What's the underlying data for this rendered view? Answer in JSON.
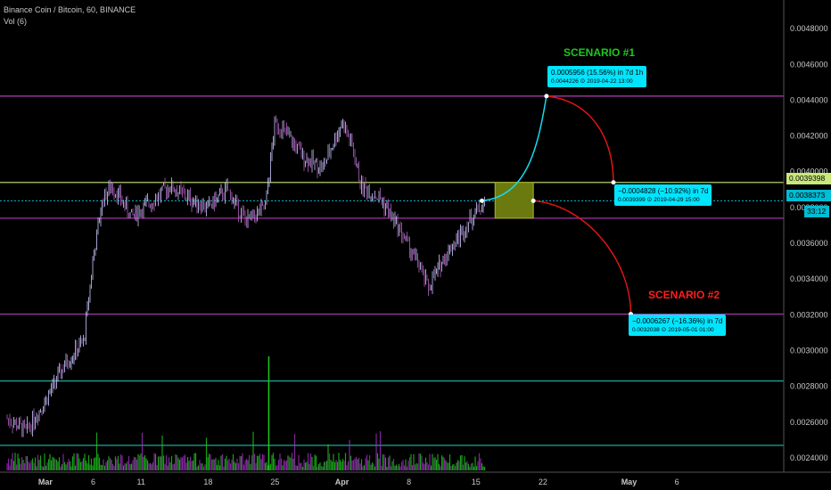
{
  "header": {
    "title": "Binance Coin / Bitcoin, 60, BINANCE",
    "volume_label": "Vol (6)"
  },
  "scenario1": {
    "title": "SCENARIO #1",
    "color": "#1ec81e",
    "tooltip_main": "0.0005956 (15.56%) in 7d 1h",
    "tooltip_price": "0.0044226",
    "tooltip_date": "2019-04-22  13:00"
  },
  "middle_tooltip": {
    "main": "−0.0004828 (−10.92%) in 7d",
    "price": "0.0039399",
    "date": "2019-04-29  15:00"
  },
  "scenario2": {
    "title": "SCENARIO #2",
    "color": "#ff1e1e",
    "tooltip_main": "−0.0006267 (−16.36%) in 7d",
    "tooltip_price": "0.0032038",
    "date": "2019-05-01  01:00"
  },
  "price_tags": {
    "upper": "0.0039398",
    "current": "0.0038373",
    "countdown": "33:12"
  },
  "chart_data": {
    "type": "line",
    "title": "Binance Coin / Bitcoin, 60, BINANCE",
    "y_ticks": [
      "0.0024000",
      "0.0026000",
      "0.0028000",
      "0.0030000",
      "0.0032000",
      "0.0034000",
      "0.0036000",
      "0.0038000",
      "0.0040000",
      "0.0042000",
      "0.0044000",
      "0.0046000",
      "0.0048000"
    ],
    "x_ticks": [
      "Mar",
      "6",
      "11",
      "18",
      "25",
      "Apr",
      "8",
      "15",
      "22",
      "May",
      "6"
    ],
    "y_range": [
      0.00232,
      0.00496
    ],
    "price_series": {
      "x": [
        "02-25",
        "02-27",
        "03-01",
        "03-03",
        "03-05",
        "03-06",
        "03-07",
        "03-08",
        "03-10",
        "03-12",
        "03-14",
        "03-16",
        "03-18",
        "03-20",
        "03-22",
        "03-24",
        "03-25",
        "03-26",
        "03-28",
        "03-30",
        "04-01",
        "04-02",
        "04-03",
        "04-05",
        "04-07",
        "04-09",
        "04-10",
        "04-11",
        "04-12",
        "04-13",
        "04-15",
        "04-16"
      ],
      "values": [
        0.00262,
        0.00255,
        0.00272,
        0.00292,
        0.00305,
        0.00352,
        0.00385,
        0.00392,
        0.00375,
        0.00383,
        0.00392,
        0.00385,
        0.0038,
        0.0039,
        0.00372,
        0.0038,
        0.00428,
        0.00422,
        0.00408,
        0.00402,
        0.00428,
        0.00415,
        0.00392,
        0.00385,
        0.00368,
        0.00348,
        0.00335,
        0.00345,
        0.00355,
        0.00362,
        0.00378,
        0.00383
      ]
    },
    "horizontal_levels": [
      {
        "value": 0.0044226,
        "color": "#b23bb2"
      },
      {
        "value": 0.0039398,
        "color": "#c8e87a"
      },
      {
        "value": 0.00374,
        "color": "#b23bb2"
      },
      {
        "value": 0.0032038,
        "color": "#b23bb2"
      },
      {
        "value": 0.00283,
        "color": "#1fa89a"
      },
      {
        "value": 0.00247,
        "color": "#1fa89a"
      }
    ],
    "projection_box": {
      "x_start": "04-17",
      "x_end": "04-21",
      "y_low": 0.00374,
      "y_high": 0.00394,
      "color": "#6b7a0f"
    },
    "projections": [
      {
        "name": "SCENARIO #1",
        "from": 0.0038373,
        "to": 0.0044226,
        "color": "#19d9f0"
      },
      {
        "name": "",
        "from": 0.0044226,
        "to": 0.0039399,
        "color": "#e01414"
      },
      {
        "name": "SCENARIO #2",
        "from": 0.0038373,
        "to": 0.0032038,
        "color": "#e01414"
      }
    ],
    "volume_color_up": "#1ec81e",
    "volume_color_down": "#a030c0",
    "grid": false
  }
}
